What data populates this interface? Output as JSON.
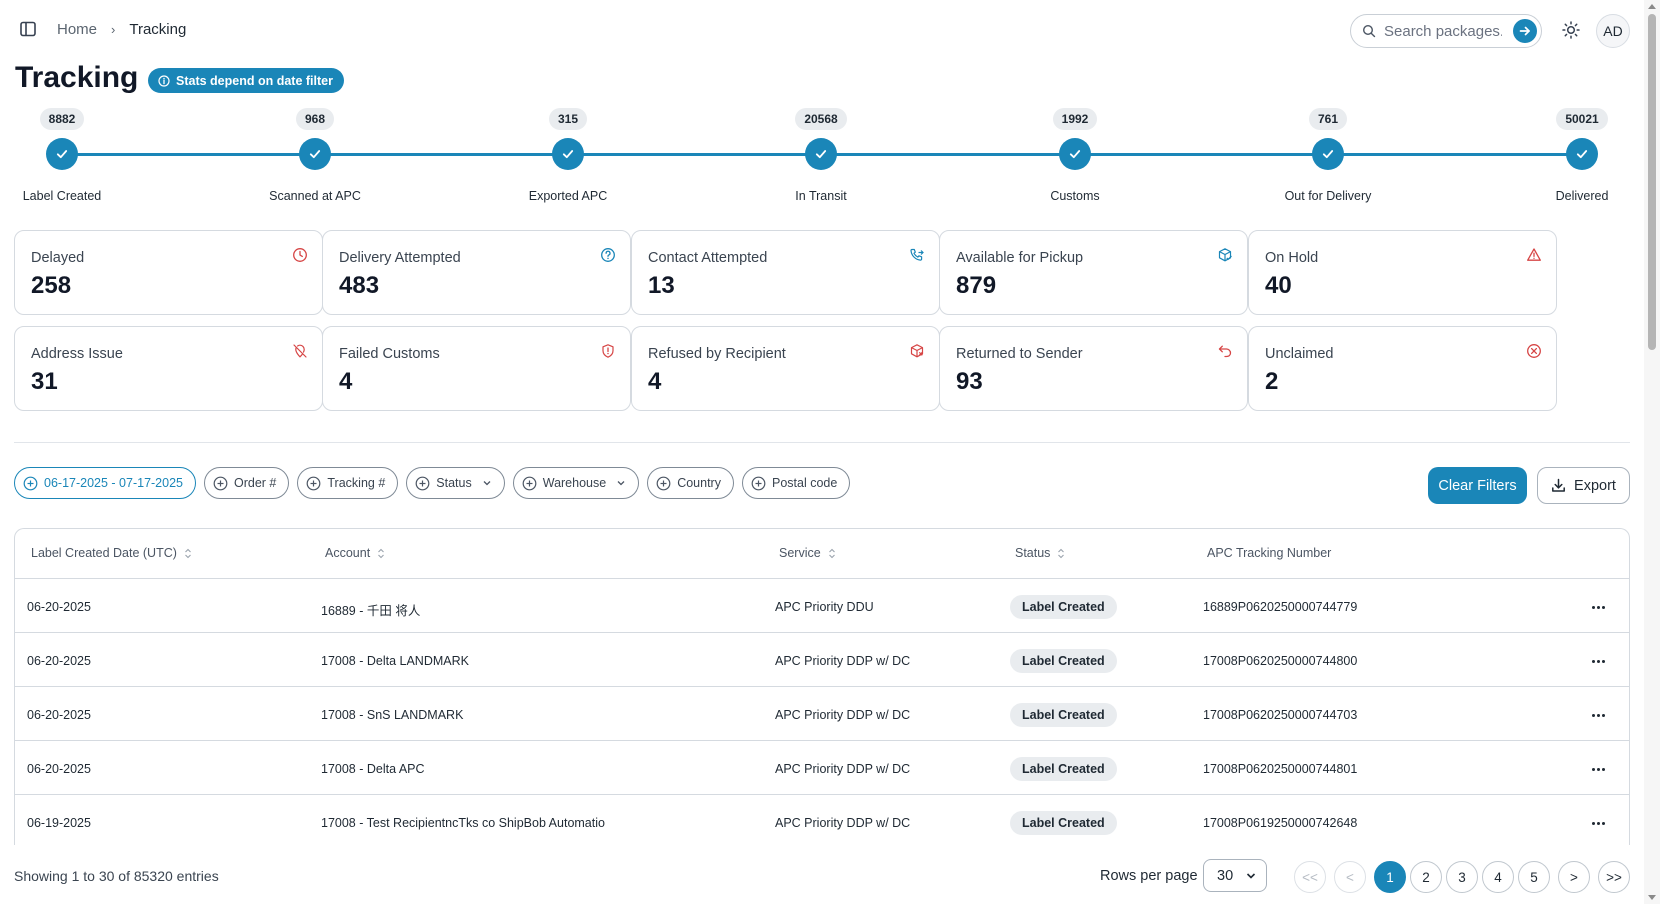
{
  "header": {
    "breadcrumb_home": "Home",
    "breadcrumb_sep": "›",
    "breadcrumb_current": "Tracking",
    "search_placeholder": "Search packages...",
    "avatar_initials": "AD"
  },
  "page": {
    "title": "Tracking",
    "stats_badge": "Stats depend on date filter"
  },
  "stepper": [
    {
      "count": "8882",
      "label": "Label Created"
    },
    {
      "count": "968",
      "label": "Scanned at APC"
    },
    {
      "count": "315",
      "label": "Exported APC"
    },
    {
      "count": "20568",
      "label": "In Transit"
    },
    {
      "count": "1992",
      "label": "Customs"
    },
    {
      "count": "761",
      "label": "Out for Delivery"
    },
    {
      "count": "50021",
      "label": "Delivered"
    }
  ],
  "cards": [
    {
      "label": "Delayed",
      "value": "258",
      "icon": "clock-icon",
      "color": "#d64545"
    },
    {
      "label": "Delivery Attempted",
      "value": "483",
      "icon": "help-circle-icon",
      "color": "#1a86b8"
    },
    {
      "label": "Contact Attempted",
      "value": "13",
      "icon": "phone-forwarded-icon",
      "color": "#1a86b8"
    },
    {
      "label": "Available for Pickup",
      "value": "879",
      "icon": "package-check-icon",
      "color": "#1a86b8"
    },
    {
      "label": "On Hold",
      "value": "40",
      "icon": "alert-triangle-icon",
      "color": "#d64545"
    },
    {
      "label": "Address Issue",
      "value": "31",
      "icon": "map-pin-off-icon",
      "color": "#d64545"
    },
    {
      "label": "Failed Customs",
      "value": "4",
      "icon": "shield-alert-icon",
      "color": "#d64545"
    },
    {
      "label": "Refused by Recipient",
      "value": "4",
      "icon": "package-x-icon",
      "color": "#d64545"
    },
    {
      "label": "Returned to Sender",
      "value": "93",
      "icon": "undo-icon",
      "color": "#d64545"
    },
    {
      "label": "Unclaimed",
      "value": "2",
      "icon": "x-circle-icon",
      "color": "#d64545"
    }
  ],
  "filters": {
    "date_range": "06-17-2025 - 07-17-2025",
    "order": "Order #",
    "tracking": "Tracking #",
    "status": "Status",
    "warehouse": "Warehouse",
    "country": "Country",
    "postal": "Postal code",
    "clear_label": "Clear Filters",
    "export_label": "Export"
  },
  "table": {
    "columns": [
      "Label Created Date (UTC)",
      "Account",
      "Service",
      "Status",
      "APC Tracking Number"
    ],
    "rows": [
      {
        "date": "06-20-2025",
        "account": "16889 - 千田 将人",
        "service": "APC Priority DDU",
        "status": "Label Created",
        "tracking": "16889P0620250000744779"
      },
      {
        "date": "06-20-2025",
        "account": "17008 - Delta LANDMARK",
        "service": "APC Priority DDP w/ DC",
        "status": "Label Created",
        "tracking": "17008P0620250000744800"
      },
      {
        "date": "06-20-2025",
        "account": "17008 - SnS LANDMARK",
        "service": "APC Priority DDP w/ DC",
        "status": "Label Created",
        "tracking": "17008P0620250000744703"
      },
      {
        "date": "06-20-2025",
        "account": "17008 - Delta APC",
        "service": "APC Priority DDP w/ DC",
        "status": "Label Created",
        "tracking": "17008P0620250000744801"
      },
      {
        "date": "06-19-2025",
        "account": "17008 - Test RecipientncTks co ShipBob Automatio",
        "service": "APC Priority DDP w/ DC",
        "status": "Label Created",
        "tracking": "17008P0619250000742648"
      }
    ]
  },
  "footer": {
    "showing": "Showing 1 to 30 of 85320 entries",
    "rows_per_page_label": "Rows per page",
    "rows_per_page_value": "30",
    "first": "<<",
    "prev": "<",
    "pages": [
      "1",
      "2",
      "3",
      "4",
      "5"
    ],
    "next": ">",
    "last": ">>"
  },
  "colors": {
    "accent": "#1a86b8",
    "danger": "#d64545"
  }
}
